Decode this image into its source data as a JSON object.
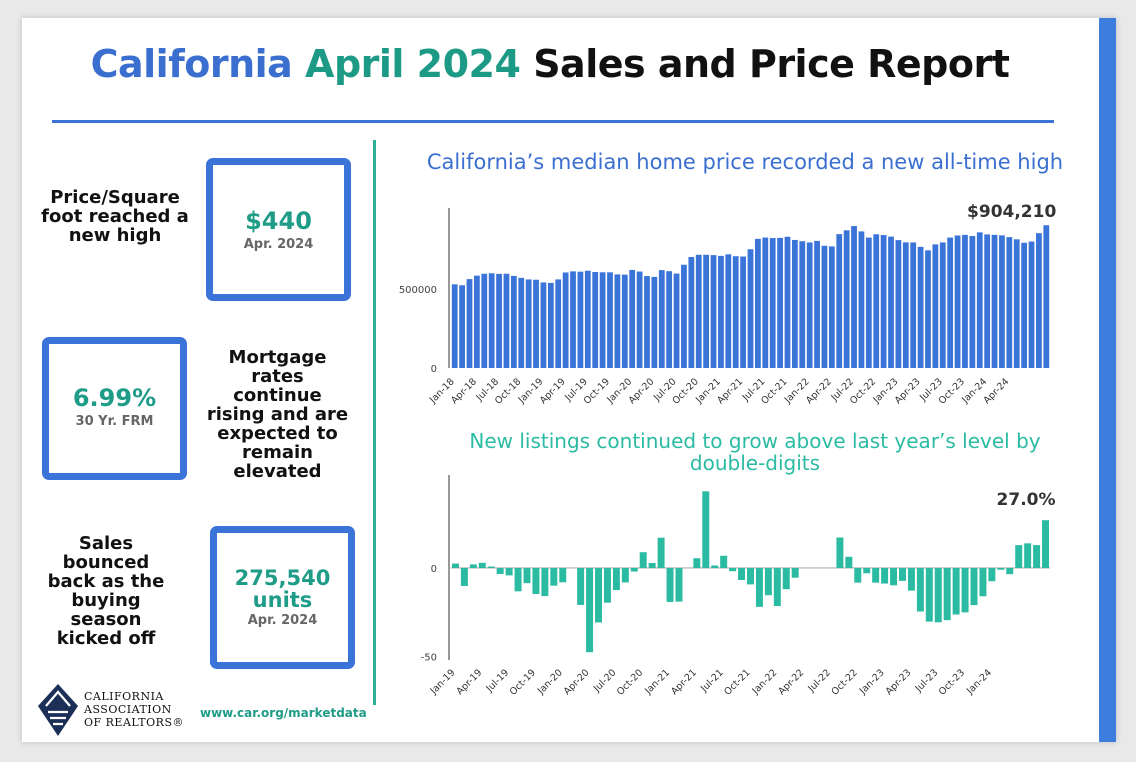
{
  "header": {
    "title_part1": "California",
    "title_part2": "April 2024",
    "title_part3": "Sales and Price Report"
  },
  "stats": {
    "price_sqft": {
      "text": "Price/Square foot reached a new high",
      "value": "$440",
      "sub": "Apr. 2024"
    },
    "mortgage": {
      "value": "6.99%",
      "sub": "30 Yr. FRM",
      "text": "Mortgage rates continue rising and are expected to remain elevated"
    },
    "sales": {
      "text": "Sales bounced back as the buying season kicked off",
      "value": "275,540 units",
      "sub": "Apr. 2024"
    }
  },
  "footer": {
    "url": "www.car.org/marketdata",
    "logo_text": "CALIFORNIA ASSOCIATION OF REALTORS®"
  },
  "colors": {
    "blue": "#3a74d9",
    "teal": "#2bbba3",
    "dark_teal": "#1f9c88"
  },
  "chart_data": [
    {
      "type": "bar",
      "title": "California’s median home price recorded a new all-time high",
      "annotation": "$904,210",
      "ylim": [
        0,
        950000
      ],
      "yticks": [
        0,
        500000
      ],
      "tick_labels": [
        "Jan-18",
        "Apr-18",
        "Jul-18",
        "Oct-18",
        "Jan-19",
        "Apr-19",
        "Jul-19",
        "Oct-19",
        "Jan-20",
        "Apr-20",
        "Jul-20",
        "Oct-20",
        "Jan-21",
        "Apr-21",
        "Jul-21",
        "Oct-21",
        "Jan-22",
        "Apr-22",
        "Jul-22",
        "Oct-22",
        "Jan-23",
        "Apr-23",
        "Jul-23",
        "Oct-23",
        "Jan-24",
        "Apr-24"
      ],
      "x_start": "2018-01",
      "values": [
        530000,
        524000,
        563000,
        585000,
        597000,
        600000,
        596000,
        597000,
        583000,
        571000,
        561000,
        559000,
        542000,
        539000,
        561000,
        605000,
        612000,
        610000,
        616000,
        608000,
        606000,
        606000,
        593000,
        591000,
        621000,
        611000,
        582000,
        577000,
        620000,
        613000,
        598000,
        654000,
        703000,
        717000,
        717000,
        715000,
        710000,
        720000,
        708000,
        706000,
        752000,
        818000,
        826000,
        823000,
        824000,
        831000,
        811000,
        803000,
        795000,
        805000,
        774000,
        770000,
        848000,
        872000,
        899000,
        865000,
        826000,
        847000,
        842000,
        832000,
        810000,
        796000,
        795000,
        767000,
        745000,
        783000,
        795000,
        826000,
        839000,
        843000,
        836000,
        859000,
        846000,
        843000,
        840000,
        829000,
        815000,
        793000,
        801000,
        854000,
        904210
      ]
    },
    {
      "type": "bar",
      "title": "New listings continued to grow above last year’s level by double-digits",
      "annotation": "27.0%",
      "ylim": [
        -52,
        48
      ],
      "yticks": [
        -50,
        0
      ],
      "tick_labels": [
        "Jan-19",
        "Apr-19",
        "Jul-19",
        "Oct-19",
        "Jan-20",
        "Apr-20",
        "Jul-20",
        "Oct-20",
        "Jan-21",
        "Apr-21",
        "Jul-21",
        "Oct-21",
        "Jan-22",
        "Apr-22",
        "Jul-22",
        "Oct-22",
        "Jan-23",
        "Apr-23",
        "Jul-23",
        "Oct-23",
        "Jan-24"
      ],
      "x_start": "2019-01",
      "values": [
        2.5,
        -10.2,
        2.0,
        2.9,
        0.8,
        -3.4,
        -4.2,
        -13.2,
        -8.6,
        -14.7,
        -15.9,
        -10.0,
        -8.1,
        0.0,
        -20.9,
        -47.6,
        -30.8,
        -19.6,
        -12.5,
        -8.2,
        -2.0,
        8.9,
        2.8,
        17.1,
        -19.2,
        -19.0,
        0.0,
        5.5,
        43.3,
        1.4,
        6.9,
        -1.8,
        -6.8,
        -9.3,
        -22.0,
        -15.4,
        -21.5,
        -12.0,
        -5.5,
        0.0,
        0.0,
        0.0,
        0.0,
        17.2,
        6.3,
        -8.3,
        -3.0,
        -8.3,
        -8.8,
        -9.8,
        -7.3,
        -12.8,
        -24.6,
        -30.3,
        -30.7,
        -29.5,
        -26.3,
        -25.1,
        -21.0,
        -16.0,
        -7.5,
        -1.0,
        -3.5,
        12.9,
        13.9,
        12.9,
        27.0
      ]
    }
  ]
}
